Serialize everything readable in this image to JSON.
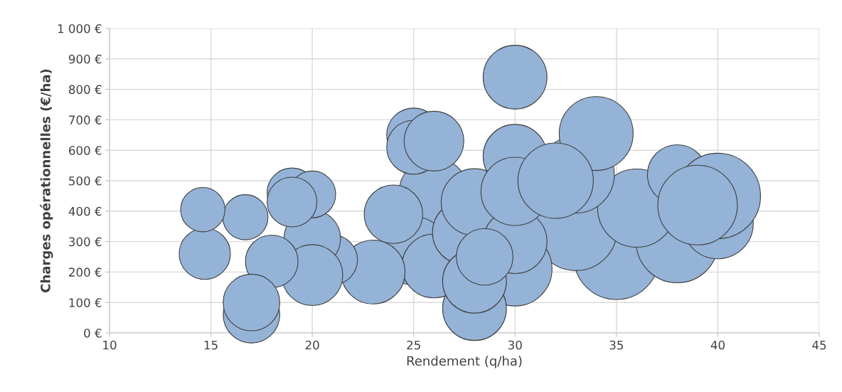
{
  "chart_data": {
    "type": "bubble",
    "xlabel": "Rendement (q/ha)",
    "ylabel": "Charges opérationnelles (€/ha)",
    "xlim": [
      10,
      45
    ],
    "xticks": [
      10,
      15,
      20,
      25,
      30,
      35,
      40,
      45
    ],
    "ylim": [
      0,
      1000
    ],
    "yticks": [
      {
        "value": 0,
        "label": "0 €"
      },
      {
        "value": 100,
        "label": "100 €"
      },
      {
        "value": 200,
        "label": "200 €"
      },
      {
        "value": 300,
        "label": "300 €"
      },
      {
        "value": 400,
        "label": "400 €"
      },
      {
        "value": 500,
        "label": "500 €"
      },
      {
        "value": 600,
        "label": "600 €"
      },
      {
        "value": 700,
        "label": "700 €"
      },
      {
        "value": 800,
        "label": "800 €"
      },
      {
        "value": 900,
        "label": "900 €"
      },
      {
        "value": 1000,
        "label": "1 000 €"
      }
    ],
    "grid": true,
    "series": [
      {
        "color": "#95b3d7",
        "x": [
          35,
          33,
          38,
          36,
          33,
          34,
          40,
          38,
          40,
          39,
          30,
          28,
          26,
          25,
          26,
          27.5,
          28,
          28,
          30,
          28.5,
          30,
          30,
          32,
          30,
          23,
          24,
          25,
          25,
          26,
          21,
          20,
          20,
          19,
          20,
          19,
          18,
          17,
          17,
          16.7,
          14.7,
          14.6
        ],
        "values": [
          250,
          340,
          300,
          410,
          520,
          655,
          360,
          520,
          450,
          420,
          210,
          80,
          460,
          270,
          220,
          330,
          170,
          430,
          300,
          250,
          580,
          465,
          500,
          840,
          200,
          390,
          650,
          610,
          630,
          240,
          310,
          190,
          460,
          455,
          430,
          235,
          60,
          100,
          380,
          260,
          405
        ],
        "sizes": [
          1,
          0.93,
          0.93,
          0.84,
          0.81,
          0.75,
          0.69,
          0.49,
          1,
          0.87,
          0.75,
          0.56,
          0.67,
          0.64,
          0.56,
          0.56,
          0.56,
          0.61,
          0.56,
          0.44,
          0.56,
          0.64,
          0.78,
          0.56,
          0.56,
          0.47,
          0.4,
          0.4,
          0.49,
          0.34,
          0.44,
          0.51,
          0.34,
          0.3,
          0.34,
          0.38,
          0.44,
          0.44,
          0.28,
          0.36,
          0.27
        ]
      }
    ]
  }
}
